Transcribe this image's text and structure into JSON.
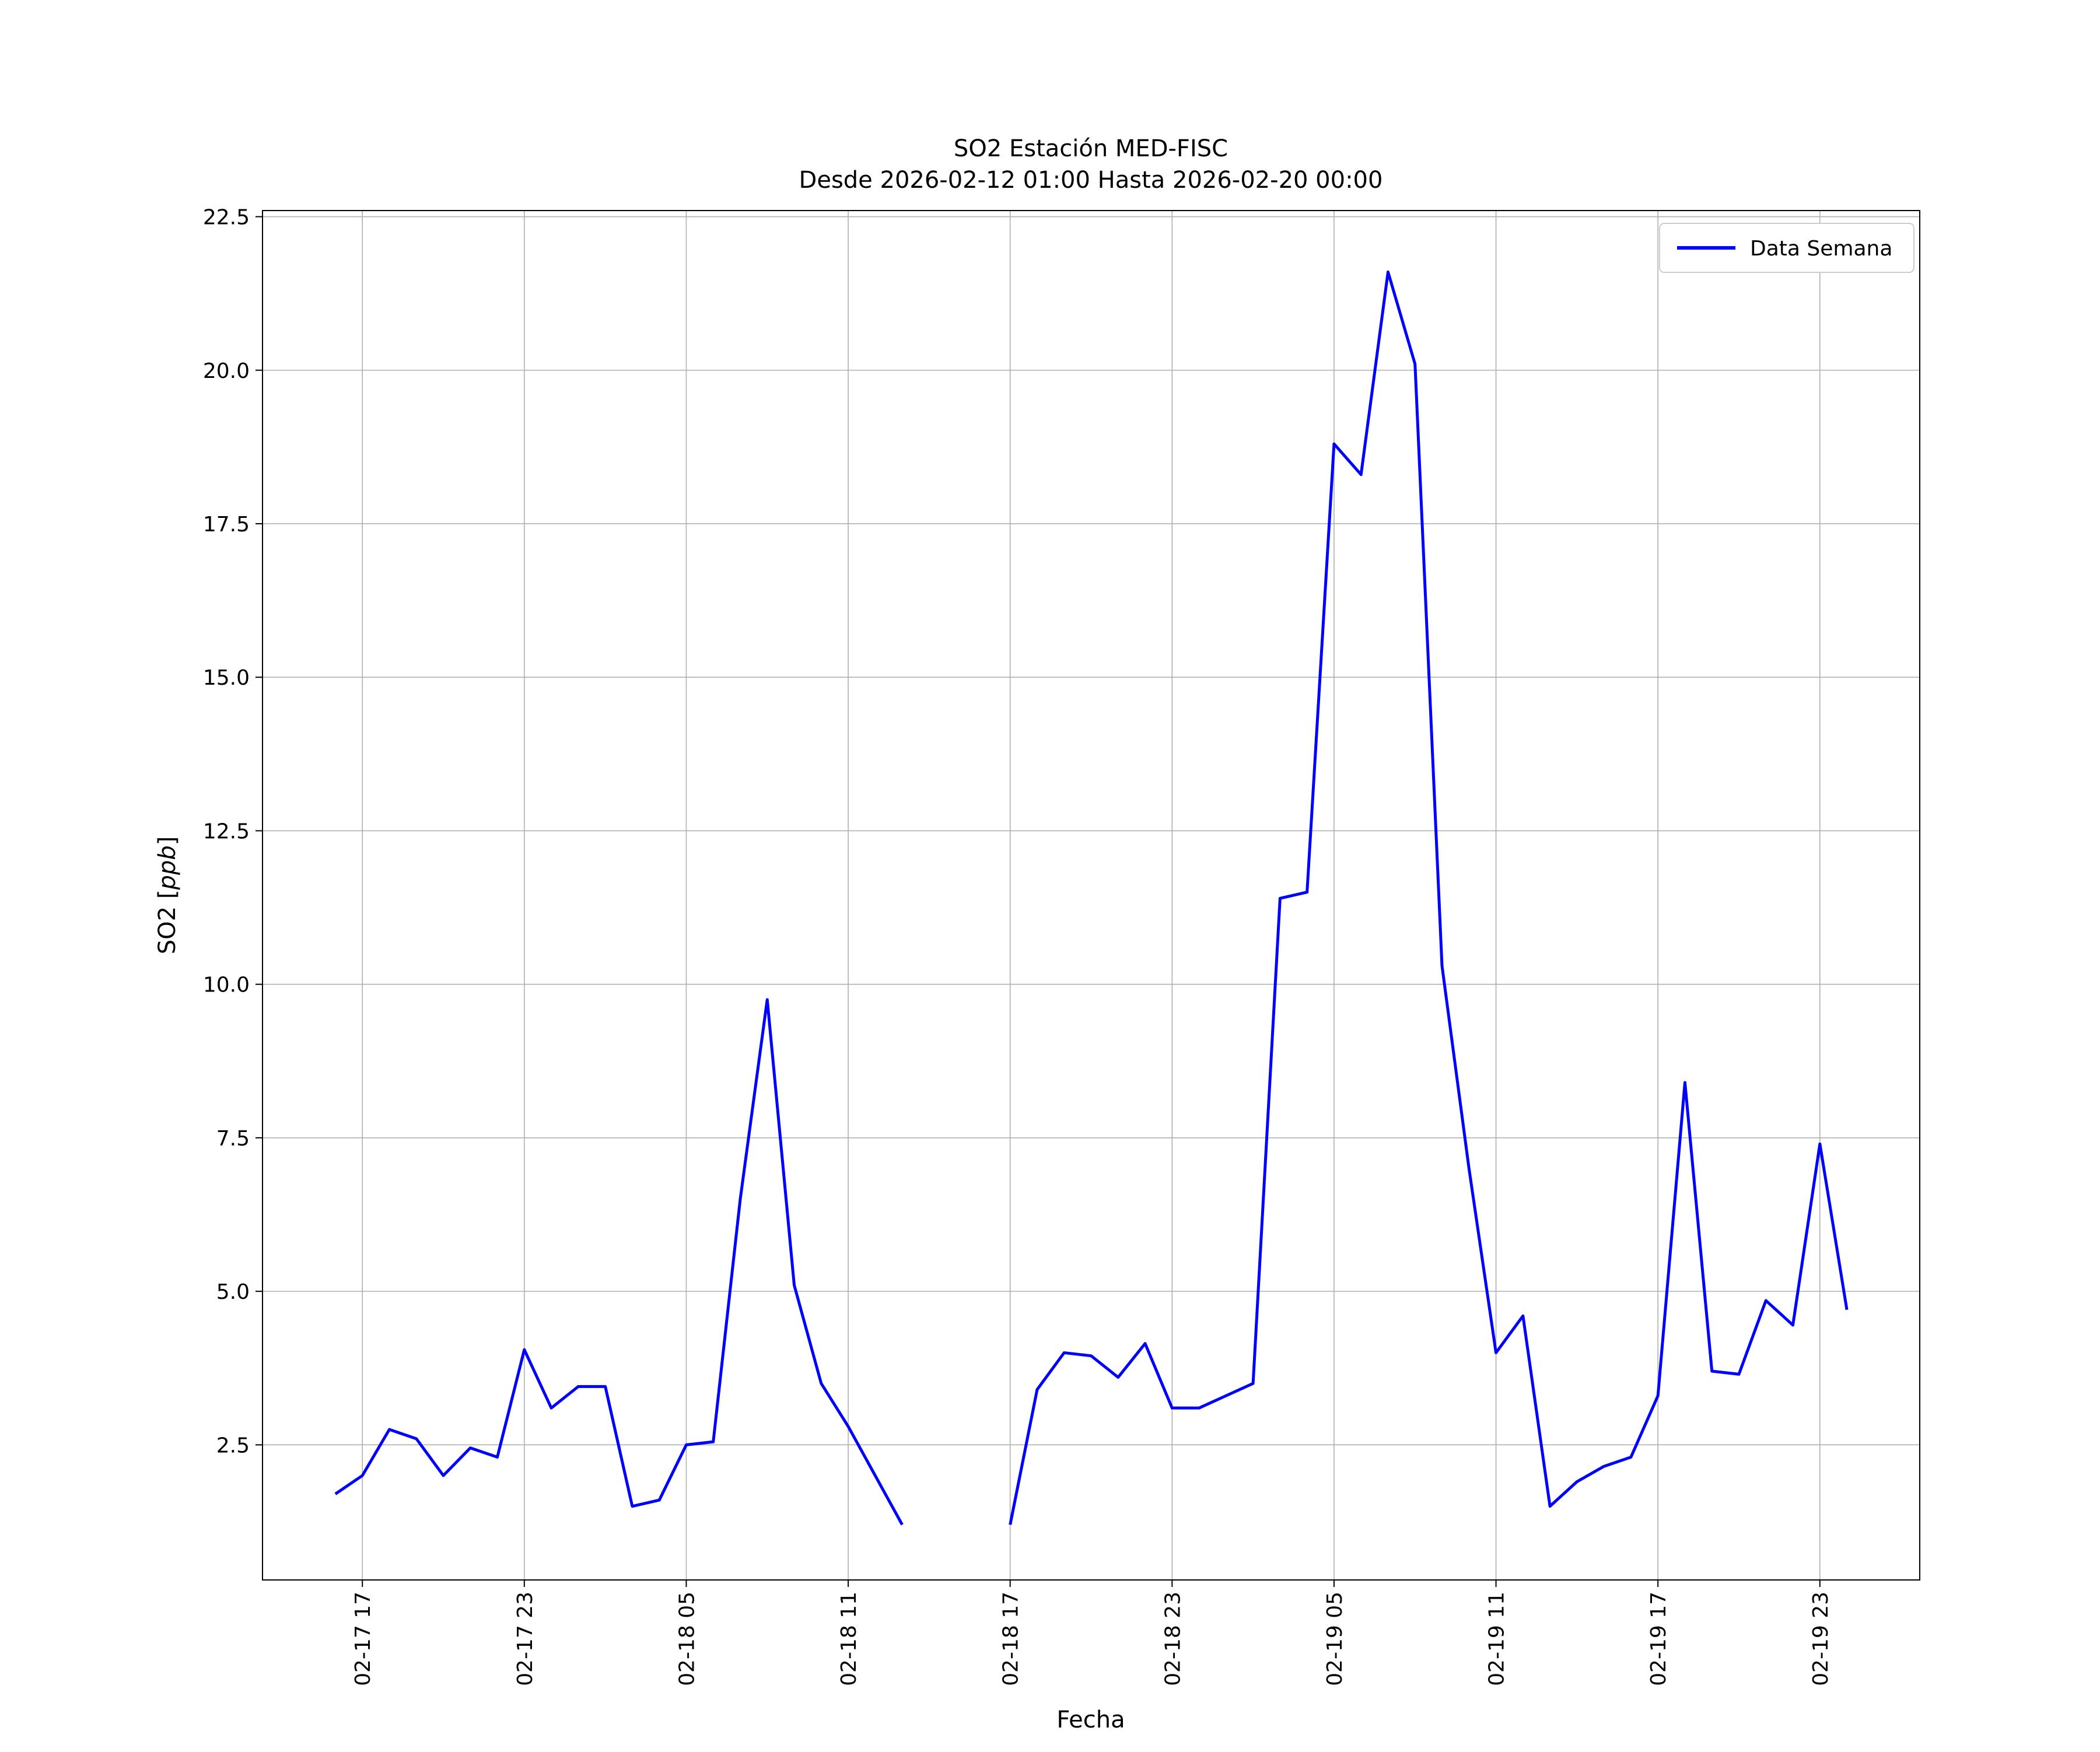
{
  "figure": {
    "title": "SO2 Estación MED-FISC",
    "subtitle": "Desde 2026-02-12 01:00 Hasta 2026-02-20 00:00",
    "xlabel": "Fecha",
    "ylabel": {
      "prefix": "SO2 [",
      "italic": "ppb",
      "suffix": "]"
    },
    "legend_label": "Data Semana",
    "colors": {
      "line": "#0000ff",
      "grid": "#b0b0b0",
      "axis": "#000000",
      "legend_border": "#cccccc",
      "background": "#ffffff"
    }
  },
  "chart_data": {
    "type": "line",
    "title": "SO2 Estación MED-FISC",
    "subtitle": "Desde 2026-02-12 01:00 Hasta 2026-02-20 00:00",
    "xlabel": "Fecha",
    "ylabel": "SO2 [ppb]",
    "legend_entries": [
      "Data Semana"
    ],
    "legend_position": "upper right",
    "grid": true,
    "x_unit": "hours since 2026-02-17 00:00",
    "xlim": [
      13.3,
      74.7
    ],
    "ylim": [
      0.3,
      22.6
    ],
    "x_ticks": {
      "hours": [
        17,
        23,
        29,
        35,
        41,
        47,
        53,
        59,
        65,
        71
      ],
      "labels": [
        "02-17 17",
        "02-17 23",
        "02-18 05",
        "02-18 11",
        "02-18 17",
        "02-18 23",
        "02-19 05",
        "02-19 11",
        "02-19 17",
        "02-19 23"
      ]
    },
    "y_ticks": {
      "values": [
        2.5,
        5.0,
        7.5,
        10.0,
        12.5,
        15.0,
        17.5,
        20.0,
        22.5
      ],
      "labels": [
        "2.5",
        "5.0",
        "7.5",
        "10.0",
        "12.5",
        "15.0",
        "17.5",
        "20.0",
        "22.5"
      ]
    },
    "series": [
      {
        "name": "Data Semana",
        "color": "#0000ff",
        "segments": [
          [
            [
              16,
              1.7
            ],
            [
              17,
              2.0
            ],
            [
              18,
              2.75
            ],
            [
              19,
              2.6
            ],
            [
              20,
              2.0
            ],
            [
              21,
              2.45
            ],
            [
              22,
              2.3
            ],
            [
              23,
              4.05
            ],
            [
              24,
              3.1
            ],
            [
              25,
              3.45
            ],
            [
              26,
              3.45
            ],
            [
              27,
              1.5
            ],
            [
              28,
              1.6
            ],
            [
              29,
              2.5
            ],
            [
              30,
              2.55
            ],
            [
              31,
              6.5
            ],
            [
              32,
              9.75
            ],
            [
              33,
              5.1
            ],
            [
              34,
              3.5
            ],
            [
              35,
              2.8
            ],
            [
              36,
              2.0
            ],
            [
              37,
              1.2
            ]
          ],
          [
            [
              41,
              1.2
            ],
            [
              42,
              3.4
            ],
            [
              43,
              4.0
            ],
            [
              44,
              3.95
            ],
            [
              45,
              3.6
            ],
            [
              46,
              4.15
            ],
            [
              47,
              3.1
            ],
            [
              48,
              3.1
            ],
            [
              49,
              3.3
            ],
            [
              50,
              3.5
            ],
            [
              51,
              11.4
            ],
            [
              52,
              11.5
            ],
            [
              53,
              18.8
            ],
            [
              54,
              18.3
            ],
            [
              55,
              21.6
            ],
            [
              56,
              20.1
            ],
            [
              57,
              10.3
            ],
            [
              58,
              7.0
            ],
            [
              59,
              4.0
            ],
            [
              60,
              4.6
            ],
            [
              61,
              1.5
            ],
            [
              62,
              1.9
            ],
            [
              63,
              2.15
            ],
            [
              64,
              2.3
            ],
            [
              65,
              3.3
            ],
            [
              66,
              8.4
            ],
            [
              67,
              3.7
            ],
            [
              68,
              3.65
            ],
            [
              69,
              4.85
            ],
            [
              70,
              4.45
            ],
            [
              71,
              7.4
            ],
            [
              72,
              4.7
            ]
          ]
        ]
      }
    ]
  }
}
